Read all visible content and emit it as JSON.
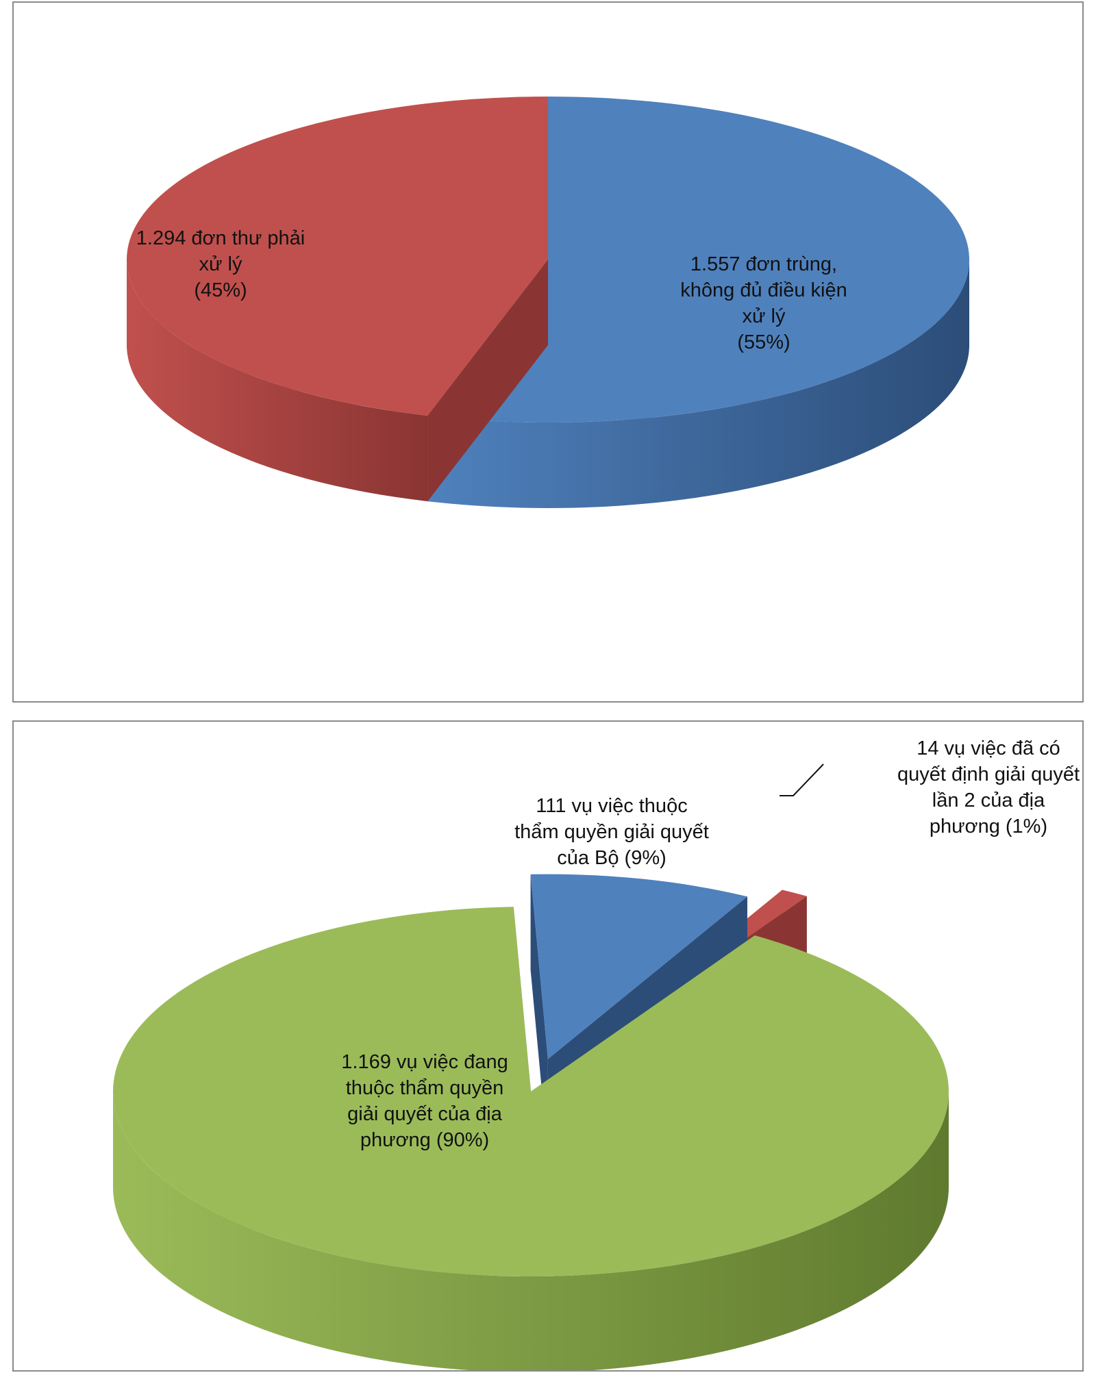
{
  "chart_data": [
    {
      "type": "pie",
      "title": "",
      "style": "3d",
      "slices": [
        {
          "label_lines": [
            "1.557 đơn trùng,",
            "không  đủ điều kiện",
            "xử lý",
            "(55%)"
          ],
          "value": 1557,
          "percent": 55,
          "color": "#4f81bd",
          "side_color": "#2c4d78"
        },
        {
          "label_lines": [
            "1.294 đơn thư phải",
            "xử lý",
            "(45%)"
          ],
          "value": 1294,
          "percent": 45,
          "color": "#c0504d",
          "side_color": "#8a3533"
        }
      ]
    },
    {
      "type": "pie",
      "title": "",
      "style": "3d-exploded",
      "slices": [
        {
          "label_lines": [
            "1.169 vụ việc đang",
            "thuộc thẩm quyền",
            "giải quyết của địa",
            "phương (90%)"
          ],
          "value": 1169,
          "percent": 90,
          "color": "#9bbb59",
          "side_color": "#5f7a2e"
        },
        {
          "label_lines": [
            "111 vụ việc thuộc",
            "thẩm quyền giải quyết",
            "của Bộ (9%)"
          ],
          "value": 111,
          "percent": 9,
          "color": "#4f81bd",
          "side_color": "#2c4d78"
        },
        {
          "label_lines": [
            "14 vụ việc đã có",
            "quyết định giải quyết",
            "lần 2 của địa",
            "phương (1%)"
          ],
          "value": 14,
          "percent": 1,
          "color": "#c0504d",
          "side_color": "#8a3533"
        }
      ]
    }
  ]
}
